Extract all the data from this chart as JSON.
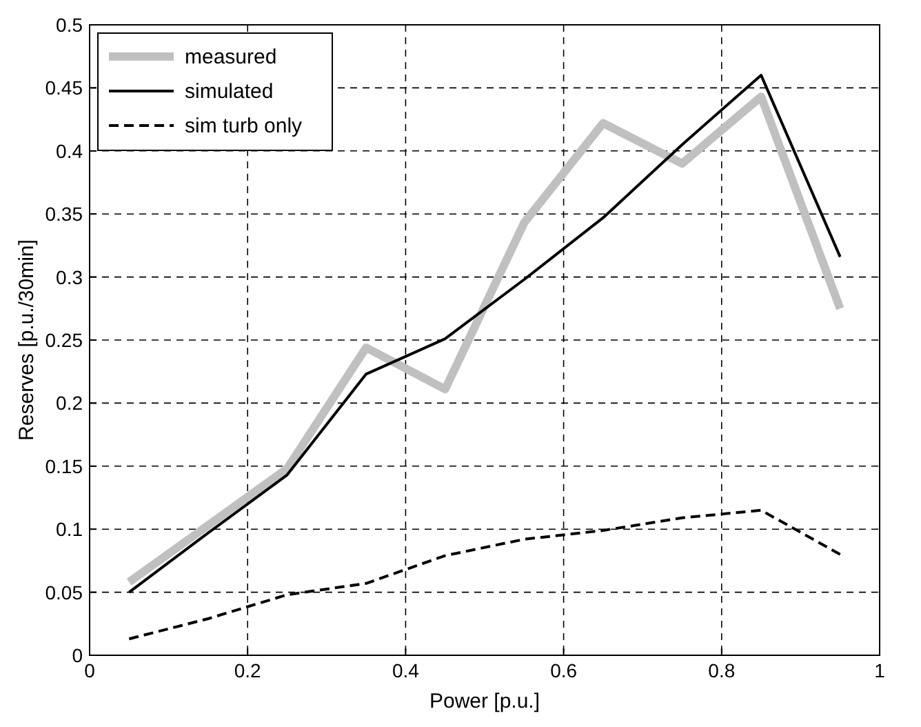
{
  "chart_data": {
    "type": "line",
    "xlabel": "Power [p.u.]",
    "ylabel": "Reserves [p.u./30min]",
    "x": [
      0.05,
      0.15,
      0.25,
      0.35,
      0.45,
      0.55,
      0.65,
      0.75,
      0.85,
      0.95
    ],
    "series": [
      {
        "name": "measured",
        "color": "#c0c0c0",
        "line_style": "solid",
        "values": [
          0.058,
          0.103,
          0.148,
          0.244,
          0.211,
          0.343,
          0.422,
          0.39,
          0.443,
          0.275
        ]
      },
      {
        "name": "simulated",
        "color": "#000000",
        "line_style": "solid",
        "values": [
          0.05,
          0.097,
          0.143,
          0.223,
          0.251,
          0.298,
          0.347,
          0.405,
          0.46,
          0.316
        ]
      },
      {
        "name": "sim turb only",
        "color": "#000000",
        "line_style": "dashed",
        "values": [
          0.013,
          0.029,
          0.048,
          0.057,
          0.079,
          0.092,
          0.099,
          0.109,
          0.115,
          0.08
        ]
      }
    ],
    "xlim": [
      0,
      1
    ],
    "xticks": [
      0,
      0.2,
      0.4,
      0.6,
      0.8,
      1
    ],
    "ylim": [
      0,
      0.5
    ],
    "yticks": [
      0,
      0.05,
      0.1,
      0.15,
      0.2,
      0.25,
      0.3,
      0.35,
      0.4,
      0.45,
      0.5
    ],
    "grid": true,
    "legend": "top left"
  }
}
